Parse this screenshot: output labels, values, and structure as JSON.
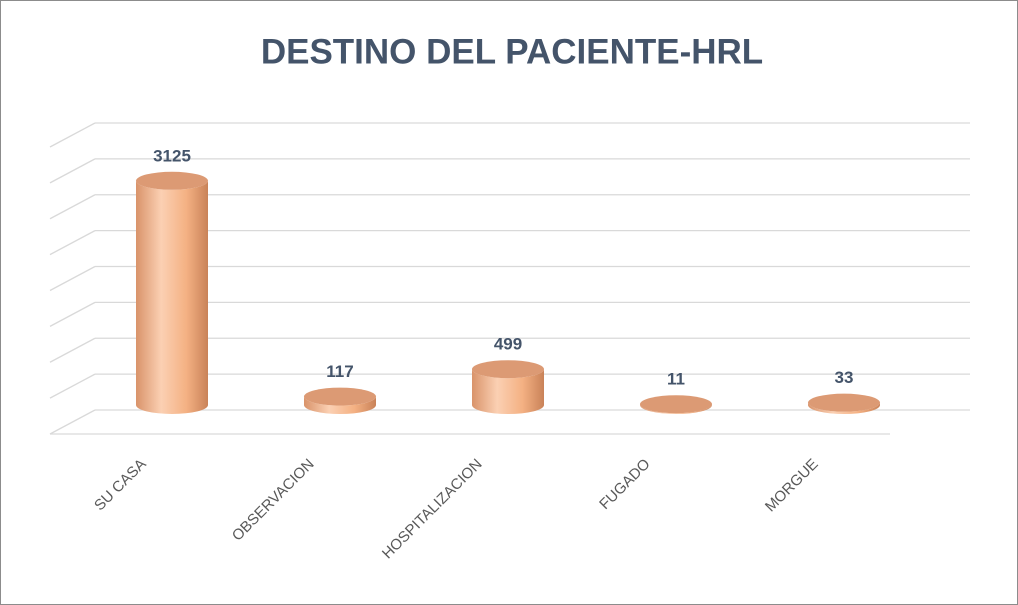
{
  "chart_data": {
    "type": "bar3d",
    "title": "DESTINO DEL PACIENTE-HRL",
    "categories": [
      "SU CASA",
      "OBSERVACION",
      "HOSPITALIZACION",
      "FUGADO",
      "MORGUE"
    ],
    "values": [
      3125,
      117,
      499,
      11,
      33
    ],
    "color": "#f4b183",
    "ylim": [
      0,
      4000
    ],
    "yticks": [
      0,
      500,
      1000,
      1500,
      2000,
      2500,
      3000,
      3500,
      4000
    ],
    "grid": true
  }
}
